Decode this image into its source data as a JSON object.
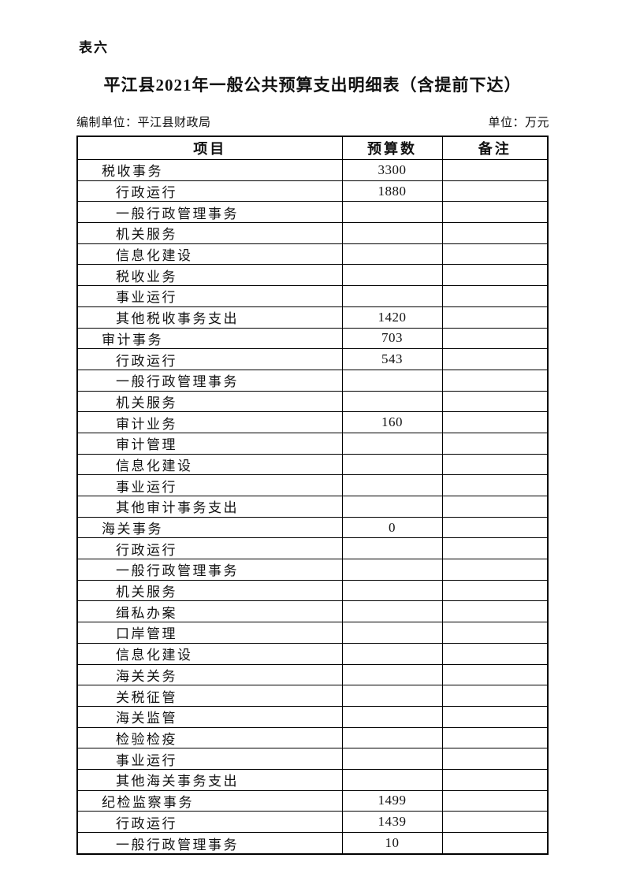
{
  "page": {
    "table_label": "表六",
    "title": "平江县2021年一般公共预算支出明细表（含提前下达）",
    "prepared_by": "编制单位：平江县财政局",
    "unit_note": "单位：万元"
  },
  "table": {
    "columns": [
      "项目",
      "预算数",
      "备注"
    ],
    "rows": [
      {
        "item": "税收事务",
        "budget": "3300",
        "note": "",
        "level": 1
      },
      {
        "item": "行政运行",
        "budget": "1880",
        "note": "",
        "level": 2
      },
      {
        "item": "一般行政管理事务",
        "budget": "",
        "note": "",
        "level": 2
      },
      {
        "item": "机关服务",
        "budget": "",
        "note": "",
        "level": 2
      },
      {
        "item": "信息化建设",
        "budget": "",
        "note": "",
        "level": 2
      },
      {
        "item": "税收业务",
        "budget": "",
        "note": "",
        "level": 2
      },
      {
        "item": "事业运行",
        "budget": "",
        "note": "",
        "level": 2
      },
      {
        "item": "其他税收事务支出",
        "budget": "1420",
        "note": "",
        "level": 2
      },
      {
        "item": "审计事务",
        "budget": "703",
        "note": "",
        "level": 1
      },
      {
        "item": "行政运行",
        "budget": "543",
        "note": "",
        "level": 2
      },
      {
        "item": "一般行政管理事务",
        "budget": "",
        "note": "",
        "level": 2
      },
      {
        "item": "机关服务",
        "budget": "",
        "note": "",
        "level": 2
      },
      {
        "item": "审计业务",
        "budget": "160",
        "note": "",
        "level": 2
      },
      {
        "item": "审计管理",
        "budget": "",
        "note": "",
        "level": 2
      },
      {
        "item": "信息化建设",
        "budget": "",
        "note": "",
        "level": 2
      },
      {
        "item": "事业运行",
        "budget": "",
        "note": "",
        "level": 2
      },
      {
        "item": "其他审计事务支出",
        "budget": "",
        "note": "",
        "level": 2
      },
      {
        "item": "海关事务",
        "budget": "0",
        "note": "",
        "level": 1
      },
      {
        "item": "行政运行",
        "budget": "",
        "note": "",
        "level": 2
      },
      {
        "item": "一般行政管理事务",
        "budget": "",
        "note": "",
        "level": 2
      },
      {
        "item": "机关服务",
        "budget": "",
        "note": "",
        "level": 2
      },
      {
        "item": "缉私办案",
        "budget": "",
        "note": "",
        "level": 2
      },
      {
        "item": "口岸管理",
        "budget": "",
        "note": "",
        "level": 2
      },
      {
        "item": "信息化建设",
        "budget": "",
        "note": "",
        "level": 2
      },
      {
        "item": "海关关务",
        "budget": "",
        "note": "",
        "level": 2
      },
      {
        "item": "关税征管",
        "budget": "",
        "note": "",
        "level": 2
      },
      {
        "item": "海关监管",
        "budget": "",
        "note": "",
        "level": 2
      },
      {
        "item": "检验检疫",
        "budget": "",
        "note": "",
        "level": 2
      },
      {
        "item": "事业运行",
        "budget": "",
        "note": "",
        "level": 2
      },
      {
        "item": "其他海关事务支出",
        "budget": "",
        "note": "",
        "level": 2
      },
      {
        "item": "纪检监察事务",
        "budget": "1499",
        "note": "",
        "level": 1
      },
      {
        "item": "行政运行",
        "budget": "1439",
        "note": "",
        "level": 2
      },
      {
        "item": "一般行政管理事务",
        "budget": "10",
        "note": "",
        "level": 2
      }
    ]
  },
  "colors": {
    "text": "#111111",
    "border": "#000000",
    "background": "#ffffff"
  }
}
